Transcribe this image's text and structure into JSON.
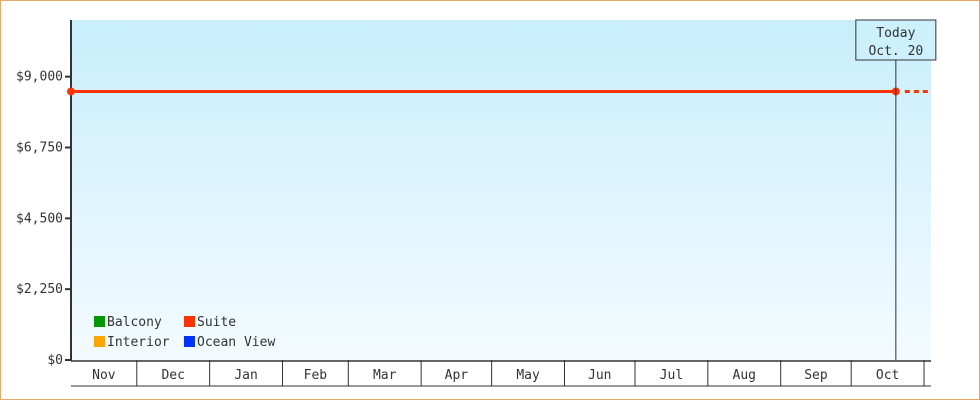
{
  "chart_data": {
    "type": "line",
    "title": "",
    "xlabel": "",
    "ylabel": "",
    "ylim": [
      0,
      10800
    ],
    "y_ticks": [
      "$0",
      "$2,250",
      "$4,500",
      "$6,750",
      "$9,000"
    ],
    "y_tick_values": [
      0,
      2250,
      4500,
      6750,
      9000
    ],
    "x_tick_labels": [
      "Nov",
      "Dec",
      "Jan",
      "Feb",
      "Mar",
      "Apr",
      "May",
      "Jun",
      "Jul",
      "Aug",
      "Sep",
      "Oct"
    ],
    "grid": false,
    "background": "light blue vertical gradient",
    "legend_placement": "bottom-left",
    "legend": [
      {
        "name": "Balcony",
        "color": "#009900"
      },
      {
        "name": "Suite",
        "color": "#ff3300"
      },
      {
        "name": "Interior",
        "color": "#ffa500"
      },
      {
        "name": "Ocean View",
        "color": "#0033ff"
      }
    ],
    "series": [
      {
        "name": "Suite",
        "color": "#ff3300",
        "points": [
          {
            "x": "Nov 3",
            "y": 8530
          },
          {
            "x": "Oct 20",
            "y": 8530
          }
        ],
        "projection": {
          "style": "dashed",
          "to": "Oct 31",
          "y": 8530
        }
      }
    ],
    "annotation": {
      "line1": "Today",
      "line2": "Oct. 20",
      "x": "Oct 20"
    }
  }
}
